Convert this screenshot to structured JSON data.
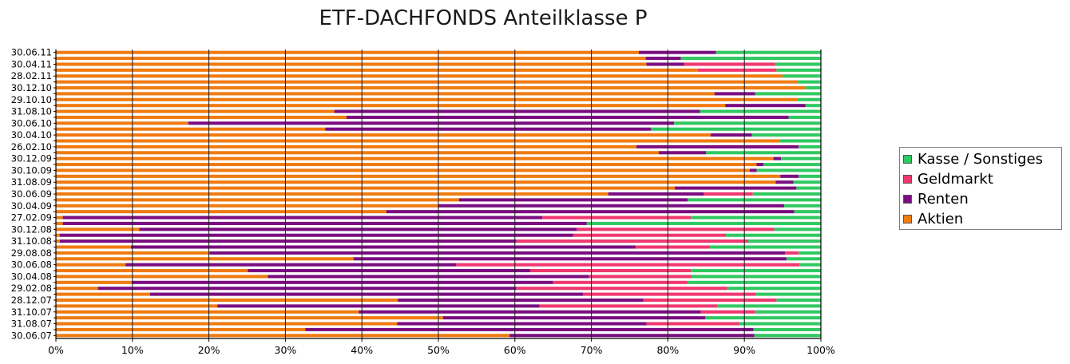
{
  "chart_data": {
    "type": "bar",
    "orientation": "horizontal",
    "stacked": true,
    "title": "ETF-DACHFONDS Anteilklasse P",
    "xlim": [
      0,
      100
    ],
    "x_ticks": [
      "0%",
      "10%",
      "20%",
      "30%",
      "40%",
      "50%",
      "60%",
      "70%",
      "80%",
      "90%",
      "100%"
    ],
    "y_tick_labels": [
      "30.06.11",
      "30.04.11",
      "28.02.11",
      "30.12.10",
      "29.10.10",
      "31.08.10",
      "30.06.10",
      "30.04.10",
      "26.02.10",
      "30.12.09",
      "30.10.09",
      "31.08.09",
      "30.06.09",
      "30.04.09",
      "27.02.09",
      "30.12.08",
      "31.10.08",
      "29.08.08",
      "30.06.08",
      "30.04.08",
      "29.02.08",
      "28.12.07",
      "31.10.07",
      "31.08.07",
      "30.06.07"
    ],
    "categories": [
      "30.06.11",
      "",
      "30.04.11",
      "",
      "28.02.11",
      "",
      "30.12.10",
      "",
      "29.10.10",
      "",
      "31.08.10",
      "",
      "30.06.10",
      "",
      "30.04.10",
      "",
      "26.02.10",
      "",
      "30.12.09",
      "",
      "30.10.09",
      "",
      "31.08.09",
      "",
      "30.06.09",
      "",
      "30.04.09",
      "",
      "27.02.09",
      "",
      "30.12.08",
      "",
      "31.10.08",
      "",
      "29.08.08",
      "",
      "30.06.08",
      "",
      "30.04.08",
      "",
      "29.02.08",
      "",
      "28.12.07",
      "",
      "31.10.07",
      "",
      "31.08.07",
      "",
      "30.06.07"
    ],
    "series": [
      {
        "name": "Aktien",
        "color": "#f07b10",
        "values": [
          76.2,
          77.1,
          77.2,
          83.9,
          95.0,
          97.0,
          98.0,
          86.1,
          96.9,
          87.5,
          36.4,
          38.0,
          17.3,
          35.2,
          85.6,
          94.6,
          75.9,
          78.8,
          93.8,
          91.6,
          90.7,
          94.7,
          94.1,
          80.9,
          72.2,
          52.7,
          50.0,
          43.2,
          0.9,
          0.9,
          10.9,
          0.5,
          0.5,
          9.8,
          20.1,
          38.9,
          9.1,
          25.1,
          27.7,
          9.9,
          5.5,
          12.3,
          44.7,
          21.1,
          39.6,
          50.6,
          44.6,
          32.6,
          59.3
        ]
      },
      {
        "name": "Renten",
        "color": "#7a0d80",
        "values": [
          10.1,
          4.6,
          4.9,
          0,
          0,
          0,
          0,
          5.3,
          0,
          10.5,
          47.8,
          57.8,
          63.5,
          42.6,
          5.4,
          0,
          21.2,
          6.2,
          1.0,
          0.9,
          0.9,
          2.4,
          2.3,
          15.9,
          12.5,
          29.9,
          45.2,
          53.3,
          62.7,
          68.5,
          57.2,
          67.1,
          59.7,
          66.0,
          75.2,
          56.6,
          43.2,
          36.9,
          42.0,
          55.1,
          54.7,
          56.6,
          32.1,
          42.1,
          44.7,
          34.3,
          32.6,
          58.6,
          32.0
        ]
      },
      {
        "name": "Geldmarkt",
        "color": "#f03870",
        "values": [
          0,
          0,
          11.9,
          10.3,
          0,
          0,
          0,
          0,
          0,
          0,
          0,
          0,
          0,
          0,
          0,
          0,
          0,
          0,
          0,
          0,
          0,
          0,
          0,
          0,
          6.4,
          0,
          0,
          0,
          19.4,
          0,
          25.8,
          20.0,
          30.3,
          9.7,
          1.8,
          0,
          44.9,
          21.0,
          13.4,
          17.6,
          27.6,
          22.6,
          17.4,
          23.3,
          7.1,
          0,
          12.1,
          0,
          0
        ]
      },
      {
        "name": "Kasse / Sonstiges",
        "color": "#30c860",
        "values": [
          13.7,
          18.3,
          6.0,
          5.8,
          5.0,
          3.0,
          2.0,
          8.6,
          3.1,
          2.0,
          15.8,
          4.2,
          19.2,
          22.2,
          9.0,
          5.4,
          2.9,
          15.0,
          5.2,
          7.5,
          8.4,
          2.9,
          3.6,
          3.2,
          8.9,
          17.4,
          4.8,
          3.5,
          17.0,
          30.6,
          6.1,
          12.4,
          9.5,
          14.5,
          2.9,
          4.5,
          2.8,
          17.0,
          16.9,
          17.4,
          12.2,
          8.5,
          5.8,
          13.5,
          8.6,
          15.1,
          10.7,
          8.8,
          8.7
        ]
      }
    ],
    "grid": true,
    "legend_position": "right",
    "legend_order": [
      "Kasse / Sonstiges",
      "Geldmarkt",
      "Renten",
      "Aktien"
    ]
  }
}
